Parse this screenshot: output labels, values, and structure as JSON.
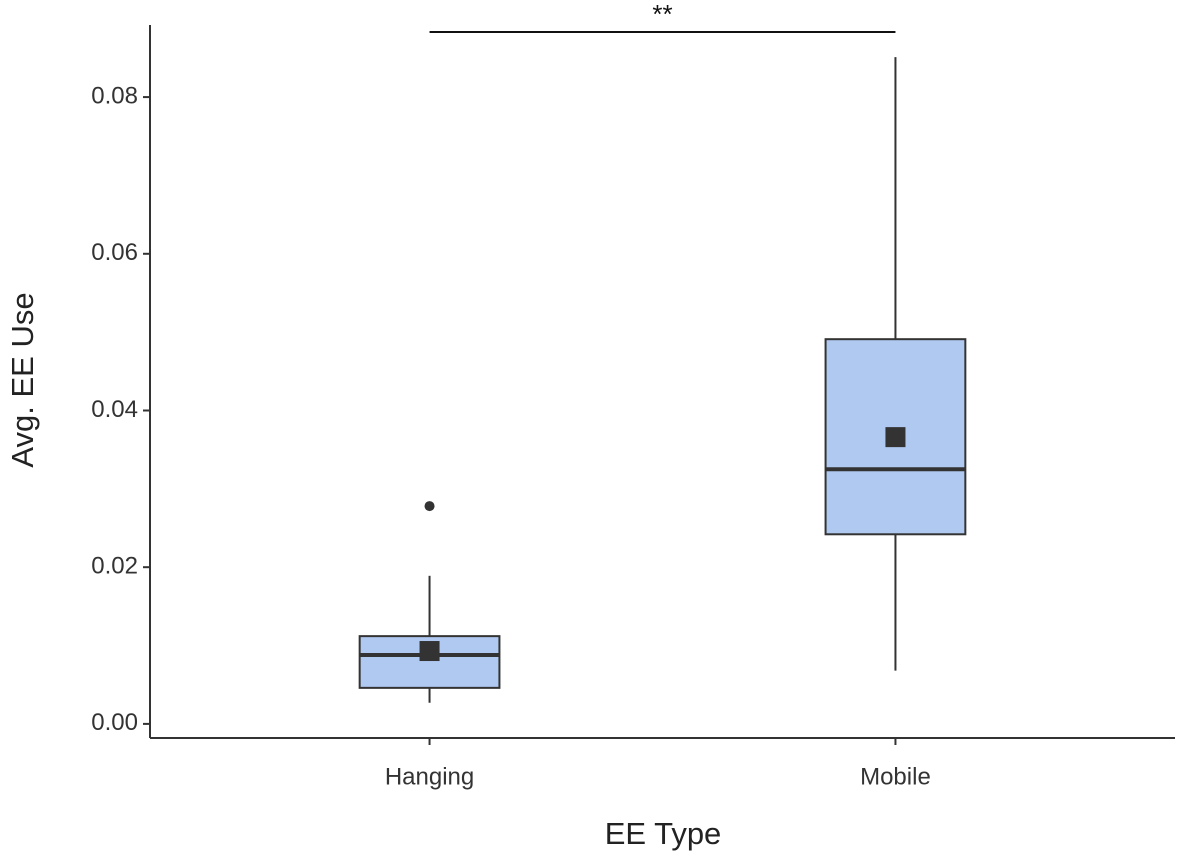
{
  "chart_data": {
    "type": "box",
    "x_label": "EE Type",
    "y_label": "Avg. EE Use",
    "categories": [
      "Hanging",
      "Mobile"
    ],
    "boxes": [
      {
        "min": 0.0027,
        "q1": 0.0046,
        "median": 0.0088,
        "q3": 0.0112,
        "max": 0.0189,
        "mean": 0.0093,
        "outliers": [
          0.0278
        ]
      },
      {
        "min": 0.0068,
        "q1": 0.0242,
        "median": 0.0325,
        "q3": 0.0491,
        "max": 0.0851,
        "mean": 0.0366,
        "outliers": []
      }
    ],
    "color": "#b0c9f1",
    "ylim": [
      -0.0018,
      0.0892
    ],
    "yticks": [
      {
        "value": 0,
        "label": "0.00"
      },
      {
        "value": 0.02,
        "label": "0.02"
      },
      {
        "value": 0.04,
        "label": "0.04"
      },
      {
        "value": 0.06,
        "label": "0.06"
      },
      {
        "value": 0.08,
        "label": "0.08"
      }
    ],
    "annotation": {
      "text": "**",
      "y": 0.0883
    }
  }
}
